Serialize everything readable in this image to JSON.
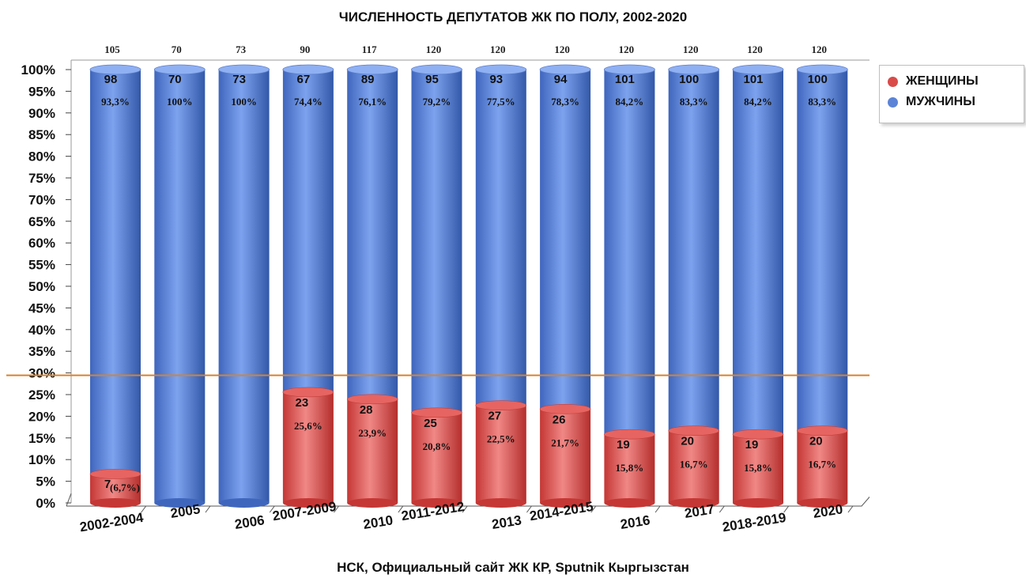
{
  "title": "ЧИСЛЕННОСТЬ ДЕПУТАТОВ ЖК ПО ПОЛУ, 2002-2020",
  "source": "НСК, Официальный сайт ЖК КР, Sputnik Кыргызстан",
  "colors": {
    "women": "#d94b49",
    "men": "#5b84d6",
    "threshold": "#d9822b"
  },
  "legend": [
    {
      "label": "ЖЕНЩИНЫ",
      "color": "#d94b49"
    },
    {
      "label": "МУЖЧИНЫ",
      "color": "#5b84d6"
    }
  ],
  "chart_data": {
    "type": "bar",
    "stacked": "percent",
    "title": "ЧИСЛЕННОСТЬ ДЕПУТАТОВ ЖК ПО ПОЛУ, 2002-2020",
    "categories": [
      "2002-2004",
      "2005",
      "2006",
      "2007-2009",
      "2010",
      "2011-2012",
      "2013",
      "2014-2015",
      "2016",
      "2017",
      "2018-2019",
      "2020"
    ],
    "totals": [
      "105",
      "70",
      "73",
      "90",
      "117",
      "120",
      "120",
      "120",
      "120",
      "120",
      "120",
      "120"
    ],
    "series": [
      {
        "name": "ЖЕНЩИНЫ",
        "values": [
          7,
          0,
          0,
          23,
          28,
          25,
          27,
          26,
          19,
          20,
          19,
          20
        ],
        "count_labels": [
          "7",
          "",
          "",
          "23",
          "28",
          "25",
          "27",
          "26",
          "19",
          "20",
          "19",
          "20"
        ],
        "pct_labels": [
          "(6,7%)",
          "",
          "",
          "25,6%",
          "23,9%",
          "20,8%",
          "22,5%",
          "21,7%",
          "15,8%",
          "16,7%",
          "15,8%",
          "16,7%"
        ]
      },
      {
        "name": "МУЖЧИНЫ",
        "values": [
          98,
          70,
          73,
          67,
          89,
          95,
          93,
          94,
          101,
          100,
          101,
          100
        ],
        "count_labels": [
          "98",
          "70",
          "73",
          "67",
          "89",
          "95",
          "93",
          "94",
          "101",
          "100",
          "101",
          "100"
        ],
        "pct_labels": [
          "93,3%",
          "100%",
          "100%",
          "74,4%",
          "76,1%",
          "79,2%",
          "77,5%",
          "78,3%",
          "84,2%",
          "83,3%",
          "84,2%",
          "83,3%"
        ]
      }
    ],
    "y_ticks": [
      "0%",
      "5%",
      "10%",
      "15%",
      "20%",
      "25%",
      "30%",
      "35%",
      "40%",
      "45%",
      "50%",
      "55%",
      "60%",
      "65%",
      "70%",
      "75%",
      "80%",
      "85%",
      "90%",
      "95%",
      "100%"
    ],
    "ylim": [
      0,
      100
    ],
    "reference_line": 30,
    "grid": false,
    "legend_position": "right"
  }
}
